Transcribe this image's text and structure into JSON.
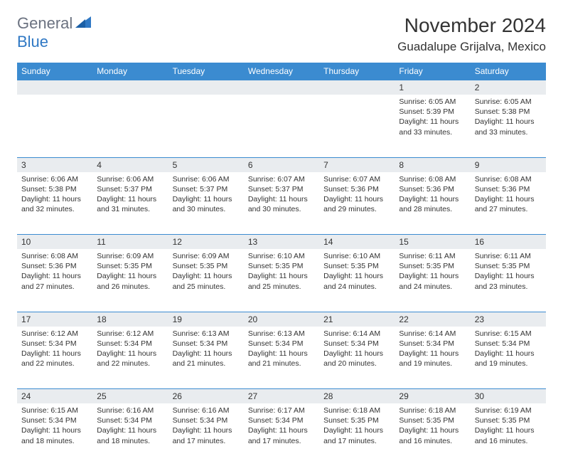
{
  "brand": {
    "part1": "General",
    "part2": "Blue"
  },
  "title": "November 2024",
  "location": "Guadalupe Grijalva, Mexico",
  "colors": {
    "header_bg": "#3b8bd0",
    "header_text": "#ffffff",
    "daynum_bg": "#e9ecef",
    "border": "#3b8bd0",
    "text": "#333333",
    "brand_gray": "#6b7280",
    "brand_blue": "#2f78c4"
  },
  "daysOfWeek": [
    "Sunday",
    "Monday",
    "Tuesday",
    "Wednesday",
    "Thursday",
    "Friday",
    "Saturday"
  ],
  "weeks": [
    [
      {
        "n": "",
        "lines": []
      },
      {
        "n": "",
        "lines": []
      },
      {
        "n": "",
        "lines": []
      },
      {
        "n": "",
        "lines": []
      },
      {
        "n": "",
        "lines": []
      },
      {
        "n": "1",
        "lines": [
          "Sunrise: 6:05 AM",
          "Sunset: 5:39 PM",
          "Daylight: 11 hours",
          "and 33 minutes."
        ]
      },
      {
        "n": "2",
        "lines": [
          "Sunrise: 6:05 AM",
          "Sunset: 5:38 PM",
          "Daylight: 11 hours",
          "and 33 minutes."
        ]
      }
    ],
    [
      {
        "n": "3",
        "lines": [
          "Sunrise: 6:06 AM",
          "Sunset: 5:38 PM",
          "Daylight: 11 hours",
          "and 32 minutes."
        ]
      },
      {
        "n": "4",
        "lines": [
          "Sunrise: 6:06 AM",
          "Sunset: 5:37 PM",
          "Daylight: 11 hours",
          "and 31 minutes."
        ]
      },
      {
        "n": "5",
        "lines": [
          "Sunrise: 6:06 AM",
          "Sunset: 5:37 PM",
          "Daylight: 11 hours",
          "and 30 minutes."
        ]
      },
      {
        "n": "6",
        "lines": [
          "Sunrise: 6:07 AM",
          "Sunset: 5:37 PM",
          "Daylight: 11 hours",
          "and 30 minutes."
        ]
      },
      {
        "n": "7",
        "lines": [
          "Sunrise: 6:07 AM",
          "Sunset: 5:36 PM",
          "Daylight: 11 hours",
          "and 29 minutes."
        ]
      },
      {
        "n": "8",
        "lines": [
          "Sunrise: 6:08 AM",
          "Sunset: 5:36 PM",
          "Daylight: 11 hours",
          "and 28 minutes."
        ]
      },
      {
        "n": "9",
        "lines": [
          "Sunrise: 6:08 AM",
          "Sunset: 5:36 PM",
          "Daylight: 11 hours",
          "and 27 minutes."
        ]
      }
    ],
    [
      {
        "n": "10",
        "lines": [
          "Sunrise: 6:08 AM",
          "Sunset: 5:36 PM",
          "Daylight: 11 hours",
          "and 27 minutes."
        ]
      },
      {
        "n": "11",
        "lines": [
          "Sunrise: 6:09 AM",
          "Sunset: 5:35 PM",
          "Daylight: 11 hours",
          "and 26 minutes."
        ]
      },
      {
        "n": "12",
        "lines": [
          "Sunrise: 6:09 AM",
          "Sunset: 5:35 PM",
          "Daylight: 11 hours",
          "and 25 minutes."
        ]
      },
      {
        "n": "13",
        "lines": [
          "Sunrise: 6:10 AM",
          "Sunset: 5:35 PM",
          "Daylight: 11 hours",
          "and 25 minutes."
        ]
      },
      {
        "n": "14",
        "lines": [
          "Sunrise: 6:10 AM",
          "Sunset: 5:35 PM",
          "Daylight: 11 hours",
          "and 24 minutes."
        ]
      },
      {
        "n": "15",
        "lines": [
          "Sunrise: 6:11 AM",
          "Sunset: 5:35 PM",
          "Daylight: 11 hours",
          "and 24 minutes."
        ]
      },
      {
        "n": "16",
        "lines": [
          "Sunrise: 6:11 AM",
          "Sunset: 5:35 PM",
          "Daylight: 11 hours",
          "and 23 minutes."
        ]
      }
    ],
    [
      {
        "n": "17",
        "lines": [
          "Sunrise: 6:12 AM",
          "Sunset: 5:34 PM",
          "Daylight: 11 hours",
          "and 22 minutes."
        ]
      },
      {
        "n": "18",
        "lines": [
          "Sunrise: 6:12 AM",
          "Sunset: 5:34 PM",
          "Daylight: 11 hours",
          "and 22 minutes."
        ]
      },
      {
        "n": "19",
        "lines": [
          "Sunrise: 6:13 AM",
          "Sunset: 5:34 PM",
          "Daylight: 11 hours",
          "and 21 minutes."
        ]
      },
      {
        "n": "20",
        "lines": [
          "Sunrise: 6:13 AM",
          "Sunset: 5:34 PM",
          "Daylight: 11 hours",
          "and 21 minutes."
        ]
      },
      {
        "n": "21",
        "lines": [
          "Sunrise: 6:14 AM",
          "Sunset: 5:34 PM",
          "Daylight: 11 hours",
          "and 20 minutes."
        ]
      },
      {
        "n": "22",
        "lines": [
          "Sunrise: 6:14 AM",
          "Sunset: 5:34 PM",
          "Daylight: 11 hours",
          "and 19 minutes."
        ]
      },
      {
        "n": "23",
        "lines": [
          "Sunrise: 6:15 AM",
          "Sunset: 5:34 PM",
          "Daylight: 11 hours",
          "and 19 minutes."
        ]
      }
    ],
    [
      {
        "n": "24",
        "lines": [
          "Sunrise: 6:15 AM",
          "Sunset: 5:34 PM",
          "Daylight: 11 hours",
          "and 18 minutes."
        ]
      },
      {
        "n": "25",
        "lines": [
          "Sunrise: 6:16 AM",
          "Sunset: 5:34 PM",
          "Daylight: 11 hours",
          "and 18 minutes."
        ]
      },
      {
        "n": "26",
        "lines": [
          "Sunrise: 6:16 AM",
          "Sunset: 5:34 PM",
          "Daylight: 11 hours",
          "and 17 minutes."
        ]
      },
      {
        "n": "27",
        "lines": [
          "Sunrise: 6:17 AM",
          "Sunset: 5:34 PM",
          "Daylight: 11 hours",
          "and 17 minutes."
        ]
      },
      {
        "n": "28",
        "lines": [
          "Sunrise: 6:18 AM",
          "Sunset: 5:35 PM",
          "Daylight: 11 hours",
          "and 17 minutes."
        ]
      },
      {
        "n": "29",
        "lines": [
          "Sunrise: 6:18 AM",
          "Sunset: 5:35 PM",
          "Daylight: 11 hours",
          "and 16 minutes."
        ]
      },
      {
        "n": "30",
        "lines": [
          "Sunrise: 6:19 AM",
          "Sunset: 5:35 PM",
          "Daylight: 11 hours",
          "and 16 minutes."
        ]
      }
    ]
  ]
}
